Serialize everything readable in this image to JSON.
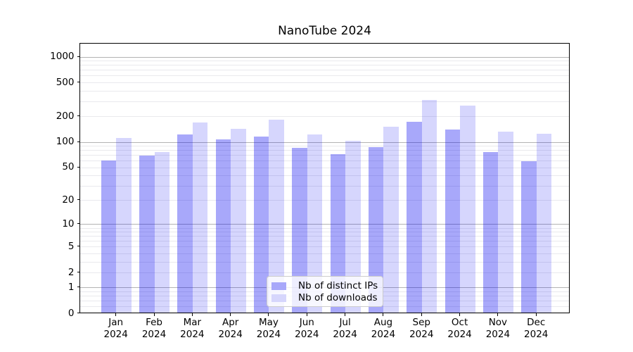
{
  "chart_data": {
    "type": "bar",
    "title": "NanoTube 2024",
    "categories": [
      "Jan",
      "Feb",
      "Mar",
      "Apr",
      "May",
      "Jun",
      "Jul",
      "Aug",
      "Sep",
      "Oct",
      "Nov",
      "Dec"
    ],
    "category_year": "2024",
    "series": [
      {
        "name": "Nb of distinct IPs",
        "values": [
          61,
          70,
          123,
          108,
          116,
          85,
          72,
          88,
          175,
          141,
          77,
          60
        ],
        "fill": "rgba(0,0,240,0.34)",
        "legend_color": "#a8a8fa"
      },
      {
        "name": "Nb of downloads",
        "values": [
          112,
          77,
          172,
          143,
          183,
          123,
          104,
          151,
          315,
          268,
          133,
          125
        ],
        "fill": "rgba(0,0,240,0.16)",
        "legend_color": "#d6d6fc"
      }
    ],
    "yscale": "log1p",
    "yticks": [
      0,
      1,
      2,
      5,
      10,
      20,
      50,
      100,
      200,
      500,
      1000
    ],
    "ylim": [
      0,
      1435
    ],
    "grid": "on",
    "grid_major_values": [
      1,
      10,
      100,
      1000
    ],
    "grid_minor_values": [
      0.2,
      0.4,
      0.6,
      0.8,
      2,
      3,
      4,
      5,
      6,
      7,
      8,
      9,
      20,
      30,
      40,
      50,
      60,
      70,
      80,
      90,
      200,
      300,
      400,
      500,
      600,
      700,
      800,
      900
    ],
    "legend_position": "lower center",
    "colors": {
      "bar_distinct_ips": "#a8a8fa",
      "bar_downloads": "#d6d6fc",
      "grid_major": "#b3b3b3",
      "grid_minor": "#e9e9ed",
      "axis": "#000000",
      "background": "#ffffff"
    }
  }
}
